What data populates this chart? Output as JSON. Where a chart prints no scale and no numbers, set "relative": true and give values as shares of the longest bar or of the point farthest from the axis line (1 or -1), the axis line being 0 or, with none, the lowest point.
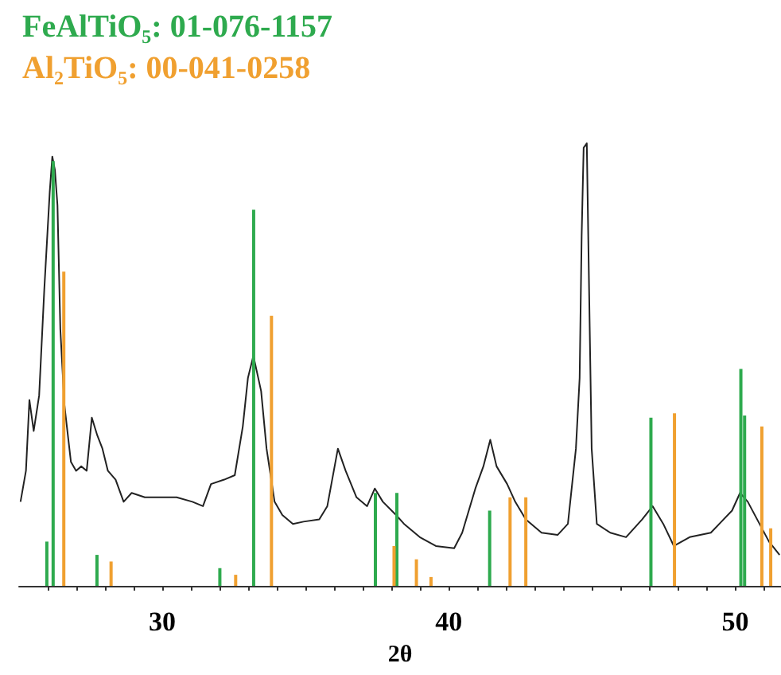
{
  "chart_data": {
    "type": "line",
    "relative": true,
    "xlabel": "2θ",
    "legend": "top left",
    "marker": "none",
    "xlim": [
      25.0,
      51.6
    ],
    "xticks": [
      {
        "value": 26,
        "label": null
      },
      {
        "value": 27,
        "label": null
      },
      {
        "value": 28,
        "label": null
      },
      {
        "value": 29,
        "label": null
      },
      30,
      {
        "value": 31,
        "label": null
      },
      {
        "value": 32,
        "label": null
      },
      {
        "value": 33,
        "label": null
      },
      {
        "value": 34,
        "label": null
      },
      {
        "value": 35,
        "label": null
      },
      {
        "value": 36,
        "label": null
      },
      {
        "value": 37,
        "label": null
      },
      {
        "value": 38,
        "label": null
      },
      {
        "value": 39,
        "label": null
      },
      40,
      {
        "value": 41,
        "label": null
      },
      {
        "value": 42,
        "label": null
      },
      {
        "value": 43,
        "label": null
      },
      {
        "value": 44,
        "label": null
      },
      {
        "value": 45,
        "label": null
      },
      {
        "value": 46,
        "label": null
      },
      {
        "value": 47,
        "label": null
      },
      {
        "value": 48,
        "label": null
      },
      {
        "value": 49,
        "label": null
      },
      50,
      {
        "value": 51,
        "label": null
      }
    ],
    "series": [
      {
        "color": "#222222",
        "x": [
          25.05,
          25.24,
          25.36,
          25.51,
          25.7,
          25.88,
          26.07,
          26.16,
          26.25,
          26.34,
          26.44,
          26.58,
          26.81,
          26.99,
          27.17,
          27.36,
          27.54,
          27.73,
          27.91,
          28.1,
          28.37,
          28.65,
          28.93,
          29.39,
          29.94,
          30.5,
          31.05,
          31.42,
          31.7,
          32.16,
          32.53,
          32.81,
          32.99,
          33.18,
          33.45,
          33.64,
          33.92,
          34.19,
          34.56,
          34.93,
          35.48,
          35.76,
          36.13,
          36.4,
          36.78,
          37.15,
          37.42,
          37.7,
          38.16,
          38.44,
          38.99,
          39.55,
          40.19,
          40.47,
          40.93,
          41.21,
          41.45,
          41.67,
          42.04,
          42.32,
          42.69,
          43.24,
          43.8,
          44.16,
          44.44,
          44.57,
          44.64,
          44.71,
          44.82,
          44.9,
          44.99,
          45.17,
          45.64,
          46.19,
          46.75,
          47.12,
          47.49,
          47.86,
          48.41,
          49.15,
          49.52,
          49.89,
          50.17,
          50.44,
          50.81,
          51.18,
          51.55
        ],
        "values": [
          0.19,
          0.26,
          0.42,
          0.35,
          0.43,
          0.67,
          0.89,
          0.97,
          0.94,
          0.86,
          0.58,
          0.41,
          0.28,
          0.26,
          0.27,
          0.26,
          0.38,
          0.34,
          0.31,
          0.26,
          0.24,
          0.19,
          0.21,
          0.2,
          0.2,
          0.2,
          0.19,
          0.18,
          0.23,
          0.24,
          0.25,
          0.36,
          0.47,
          0.52,
          0.44,
          0.31,
          0.19,
          0.16,
          0.14,
          0.145,
          0.15,
          0.18,
          0.31,
          0.26,
          0.2,
          0.18,
          0.22,
          0.19,
          0.16,
          0.14,
          0.11,
          0.09,
          0.085,
          0.12,
          0.22,
          0.27,
          0.33,
          0.27,
          0.23,
          0.19,
          0.15,
          0.12,
          0.115,
          0.14,
          0.31,
          0.47,
          0.79,
          0.99,
          1,
          0.67,
          0.31,
          0.14,
          0.12,
          0.11,
          0.15,
          0.18,
          0.14,
          0.09,
          0.11,
          0.12,
          0.145,
          0.17,
          0.21,
          0.19,
          0.145,
          0.1,
          0.07
        ]
      },
      {
        "type": "bar",
        "name": "FeAlTiO₅: 01-076-1157",
        "color": "#2eaa4e",
        "x": [
          26.03,
          26.25,
          27.78,
          32.07,
          33.25,
          37.5,
          38.25,
          41.49,
          47.12,
          50.26,
          50.39
        ],
        "values": [
          0.1,
          0.96,
          0.07,
          0.04,
          0.85,
          0.21,
          0.21,
          0.17,
          0.38,
          0.49,
          0.385
        ]
      },
      {
        "type": "bar",
        "name": "Al₂TiO₅: 00-041-0258",
        "color": "#f0a030",
        "x": [
          26.5,
          28.15,
          32.5,
          33.75,
          38.03,
          38.81,
          39.32,
          42.08,
          42.63,
          47.82,
          50.87,
          51.18
        ],
        "values": [
          0.71,
          0.055,
          0.025,
          0.61,
          0.09,
          0.06,
          0.02,
          0.2,
          0.2,
          0.39,
          0.36,
          0.13
        ]
      }
    ]
  }
}
